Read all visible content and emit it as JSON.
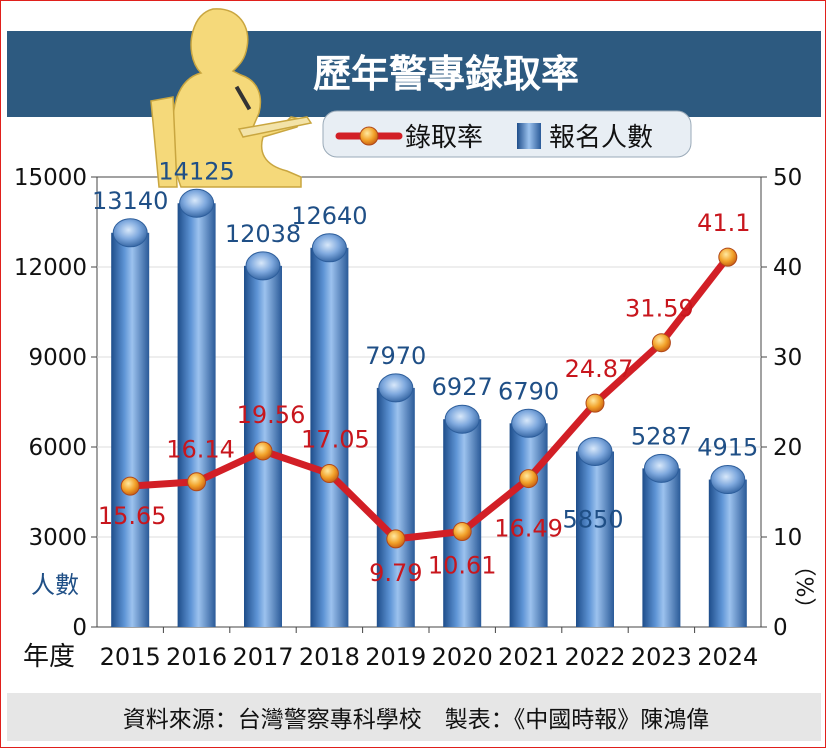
{
  "title": "歷年警專錄取率",
  "source": "資料來源：台灣警察專科學校　製表：《中國時報》陳鴻偉",
  "colors": {
    "banner": "#2d5a80",
    "bar": "#4a7fc1",
    "line": "#d21f26",
    "marker": "#f0a030",
    "value_bar": "#1f4f86",
    "value_line": "#c8161d",
    "plot_bg": "#ffffff",
    "footer_bg": "#e6e6e6",
    "silhouette": "#f5d97a"
  },
  "chart_data": {
    "type": "bar",
    "title": "歷年警專錄取率",
    "xlabel": "年度",
    "categories": [
      "2015",
      "2016",
      "2017",
      "2018",
      "2019",
      "2020",
      "2021",
      "2022",
      "2023",
      "2024"
    ],
    "series": [
      {
        "name": "報名人數",
        "type": "bar",
        "axis": "left",
        "values": [
          13140,
          14125,
          12038,
          12640,
          7970,
          6927,
          6790,
          5850,
          5287,
          4915
        ]
      },
      {
        "name": "錄取率",
        "type": "line",
        "axis": "right",
        "values": [
          15.65,
          16.14,
          19.56,
          17.05,
          9.79,
          10.61,
          16.49,
          24.87,
          31.59,
          41.1
        ]
      }
    ],
    "y_left": {
      "label": "人數",
      "range": [
        0,
        15000
      ],
      "ticks": [
        0,
        3000,
        6000,
        9000,
        12000,
        15000
      ]
    },
    "y_right": {
      "label": "（%）",
      "range": [
        0,
        50
      ],
      "ticks": [
        0,
        10,
        20,
        30,
        40,
        50
      ]
    },
    "legend": {
      "position": "top-right",
      "entries": [
        "錄取率",
        "報名人數"
      ]
    },
    "grid": true
  }
}
